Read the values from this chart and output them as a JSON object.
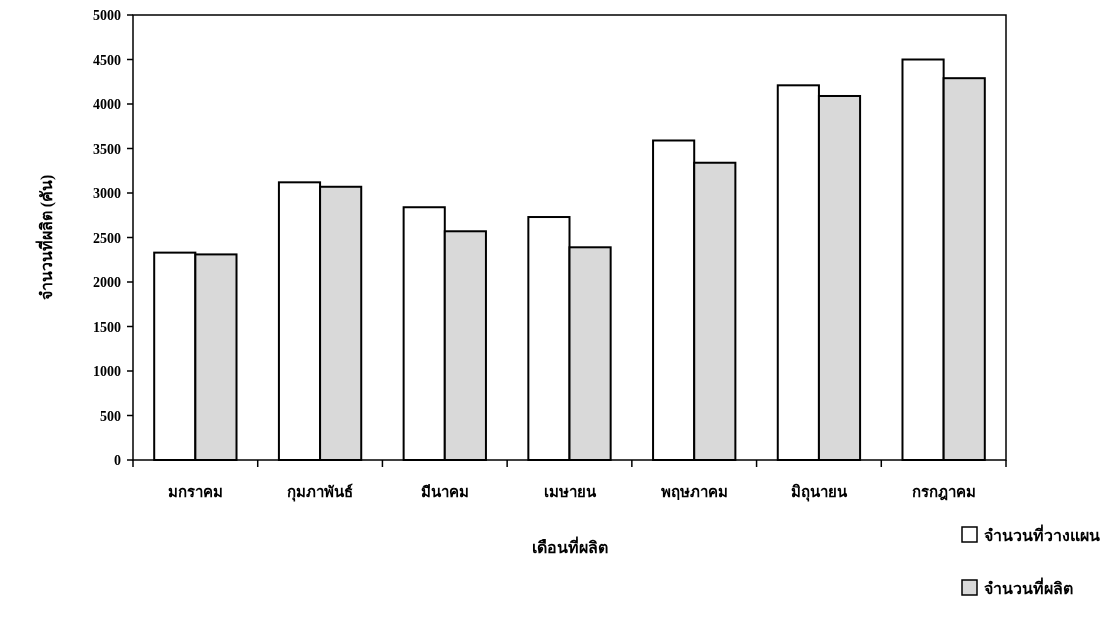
{
  "chart_data": {
    "type": "bar",
    "xlabel": "เดือนที่ผลิต",
    "ylabel": "จำนวนที่ผลิต (คัน)",
    "categories": [
      "มกราคม",
      "กุมภาพันธ์",
      "มีนาคม",
      "เมษายน",
      "พฤษภาคม",
      "มิถุนายน",
      "กรกฎาคม"
    ],
    "series": [
      {
        "name": "จำนวนที่วางแผน",
        "color": "#ffffff",
        "values": [
          2330,
          3120,
          2840,
          2730,
          3590,
          4210,
          4500
        ]
      },
      {
        "name": "จำนวนที่ผลิต",
        "color": "#d9d9d9",
        "values": [
          2310,
          3070,
          2570,
          2390,
          3340,
          4090,
          4290
        ]
      }
    ],
    "ylim": [
      0,
      5000
    ],
    "yticks": [
      0,
      500,
      1000,
      1500,
      2000,
      2500,
      3000,
      3500,
      4000,
      4500,
      5000
    ],
    "grid": false,
    "legend": "bottom right"
  }
}
